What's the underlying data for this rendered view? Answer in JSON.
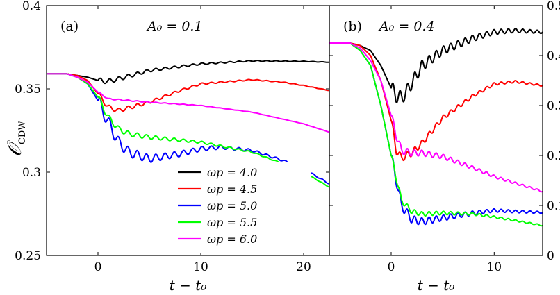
{
  "figure": {
    "ylabel": "𝒪",
    "ylabel_sub": "CDW",
    "colors": {
      "w4.0": "#000000",
      "w4.5": "#ff0000",
      "w5.0": "#0000ff",
      "w5.5": "#00ff00",
      "w6.0": "#ff00ff"
    }
  },
  "chart_data": [
    {
      "type": "line",
      "panel": "(a)",
      "annotation": "A₀ = 0.1",
      "xlabel": "t − t₀",
      "ylabel": "𝒪_CDW",
      "xlim": [
        -5,
        22.5
      ],
      "ylim": [
        0.25,
        0.4
      ],
      "xticks": [
        0,
        10,
        20
      ],
      "yticks": [
        0.25,
        0.3,
        0.35,
        0.4
      ],
      "yticklabels": [
        "0.25",
        "0.3",
        "0.35",
        "0.4"
      ],
      "legend": {
        "position": "bottom-right"
      },
      "series": [
        {
          "name": "ωp = 4.0",
          "color": "#000000",
          "osc_amp": 0.0015,
          "osc_period": 0.9,
          "x": [
            -5,
            -3,
            -2,
            -1,
            0,
            1,
            2,
            5,
            10,
            15,
            20,
            22.5
          ],
          "y": [
            0.359,
            0.359,
            0.358,
            0.357,
            0.355,
            0.3545,
            0.356,
            0.361,
            0.365,
            0.3668,
            0.3665,
            0.366
          ]
        },
        {
          "name": "ωp = 4.5",
          "color": "#ff0000",
          "osc_amp": 0.0015,
          "osc_period": 0.9,
          "x": [
            -5,
            -3,
            -2,
            -1,
            0,
            1,
            2,
            5,
            8,
            10,
            15,
            18,
            20,
            22.5
          ],
          "y": [
            0.359,
            0.359,
            0.358,
            0.355,
            0.347,
            0.339,
            0.337,
            0.342,
            0.349,
            0.353,
            0.3555,
            0.354,
            0.352,
            0.349
          ]
        },
        {
          "name": "ωp = 5.0",
          "color": "#0000ff",
          "osc_amp": 0.004,
          "osc_period": 0.9,
          "x": [
            -5,
            -3,
            -2,
            -1,
            0,
            1,
            2,
            3,
            5,
            8,
            10,
            12,
            15,
            18,
            20,
            22.5
          ],
          "y": [
            0.359,
            0.359,
            0.357,
            0.353,
            0.343,
            0.33,
            0.318,
            0.312,
            0.308,
            0.311,
            0.314,
            0.315,
            0.313,
            0.307,
            0.302,
            0.293
          ]
        },
        {
          "name": "ωp = 5.5",
          "color": "#00ff00",
          "osc_amp": 0.002,
          "osc_period": 0.9,
          "x": [
            -5,
            -3,
            -2,
            -1,
            0,
            1,
            2,
            3,
            5,
            10,
            15,
            18,
            20,
            22.5
          ],
          "y": [
            0.359,
            0.359,
            0.357,
            0.353,
            0.345,
            0.333,
            0.326,
            0.323,
            0.321,
            0.318,
            0.312,
            0.305,
            0.3,
            0.291
          ]
        },
        {
          "name": "ωp = 6.0",
          "color": "#ff00ff",
          "osc_amp": 0.0004,
          "osc_period": 0.9,
          "x": [
            -5,
            -3,
            -2,
            -1,
            0,
            1,
            2,
            5,
            10,
            15,
            20,
            22.5
          ],
          "y": [
            0.359,
            0.359,
            0.357,
            0.354,
            0.348,
            0.344,
            0.3435,
            0.342,
            0.34,
            0.336,
            0.329,
            0.324
          ]
        }
      ]
    },
    {
      "type": "line",
      "panel": "(b)",
      "annotation": "A₀ = 0.4",
      "xlabel": "t − t₀",
      "ylabel": "",
      "xlim": [
        -6,
        14.7
      ],
      "ylim": [
        0,
        0.5
      ],
      "xticks": [
        0,
        10
      ],
      "yticks": [
        0,
        0.1,
        0.2,
        0.3,
        0.4,
        0.5
      ],
      "yticklabels": [
        "0",
        "0.1",
        "0.2",
        "0.3",
        "0.4",
        "0.5"
      ],
      "series": [
        {
          "name": "ωp = 4.0",
          "color": "#000000",
          "osc_amp": 0.015,
          "osc_period": 0.7,
          "x": [
            -6,
            -4,
            -3,
            -2,
            -1,
            0,
            0.5,
            1,
            1.5,
            2,
            3,
            5,
            8,
            10,
            12,
            14.7
          ],
          "y": [
            0.425,
            0.425,
            0.42,
            0.41,
            0.38,
            0.335,
            0.32,
            0.315,
            0.328,
            0.345,
            0.38,
            0.41,
            0.435,
            0.447,
            0.45,
            0.447
          ]
        },
        {
          "name": "ωp = 4.5",
          "color": "#ff0000",
          "osc_amp": 0.008,
          "osc_period": 0.7,
          "x": [
            -6,
            -4,
            -3,
            -2,
            -1,
            0,
            0.5,
            1,
            2,
            3,
            5,
            8,
            10,
            12,
            14.7
          ],
          "y": [
            0.425,
            0.425,
            0.42,
            0.4,
            0.35,
            0.27,
            0.21,
            0.195,
            0.205,
            0.225,
            0.275,
            0.32,
            0.343,
            0.348,
            0.34
          ]
        },
        {
          "name": "ωp = 5.0",
          "color": "#0000ff",
          "osc_amp": 0.01,
          "osc_period": 0.7,
          "x": [
            -6,
            -4,
            -3,
            -2,
            -1,
            0,
            1,
            2,
            3,
            5,
            8,
            10,
            12,
            14.7
          ],
          "y": [
            0.425,
            0.425,
            0.41,
            0.38,
            0.3,
            0.2,
            0.1,
            0.072,
            0.068,
            0.075,
            0.085,
            0.09,
            0.088,
            0.086
          ]
        },
        {
          "name": "ωp = 5.5",
          "color": "#00ff00",
          "osc_amp": 0.006,
          "osc_period": 0.7,
          "x": [
            -6,
            -4,
            -3,
            -2,
            -1,
            0,
            1,
            2,
            3,
            5,
            8,
            10,
            12,
            14.7
          ],
          "y": [
            0.425,
            0.425,
            0.41,
            0.38,
            0.3,
            0.2,
            0.11,
            0.088,
            0.083,
            0.085,
            0.083,
            0.077,
            0.07,
            0.06
          ]
        },
        {
          "name": "ωp = 6.0",
          "color": "#ff00ff",
          "osc_amp": 0.008,
          "osc_period": 0.7,
          "x": [
            -6,
            -4,
            -3,
            -2,
            -1,
            0,
            0.5,
            1,
            2,
            3,
            5,
            8,
            10,
            12,
            14.7
          ],
          "y": [
            0.425,
            0.425,
            0.415,
            0.39,
            0.35,
            0.28,
            0.24,
            0.21,
            0.205,
            0.205,
            0.198,
            0.175,
            0.158,
            0.145,
            0.128
          ]
        }
      ]
    }
  ]
}
